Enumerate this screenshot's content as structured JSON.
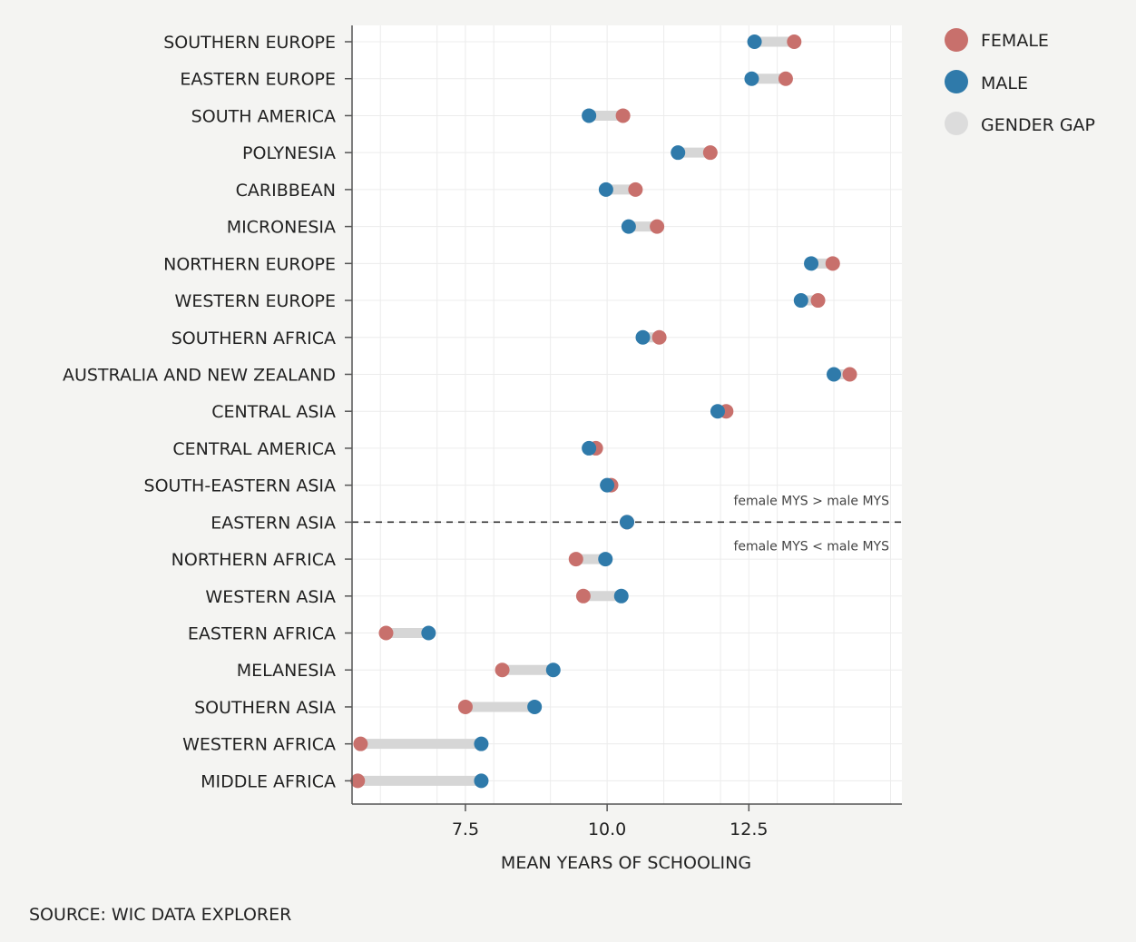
{
  "chart_data": {
    "type": "dumbbell",
    "xlabel": "MEAN YEARS OF SCHOOLING",
    "xlim": [
      5.5,
      15.2
    ],
    "x_ticks": [
      7.5,
      10.0,
      12.5
    ],
    "x_tick_labels": [
      "7.5",
      "10.0",
      "12.5"
    ],
    "grid": true,
    "legend_position": "top-right, outside plot",
    "legend": [
      {
        "label": "FEMALE",
        "color": "#c8706c"
      },
      {
        "label": "MALE",
        "color": "#2f7aaa"
      },
      {
        "label": "GENDER GAP",
        "color": "#d9d9d9"
      }
    ],
    "categories": [
      "SOUTHERN EUROPE",
      "EASTERN EUROPE",
      "SOUTH AMERICA",
      "POLYNESIA",
      "CARIBBEAN",
      "MICRONESIA",
      "NORTHERN EUROPE",
      "WESTERN EUROPE",
      "SOUTHERN AFRICA",
      "AUSTRALIA AND NEW ZEALAND",
      "CENTRAL ASIA",
      "CENTRAL AMERICA",
      "SOUTH-EASTERN ASIA",
      "EASTERN ASIA",
      "NORTHERN AFRICA",
      "WESTERN ASIA",
      "EASTERN AFRICA",
      "MELANESIA",
      "SOUTHERN ASIA",
      "WESTERN AFRICA",
      "MIDDLE AFRICA"
    ],
    "series": [
      {
        "name": "FEMALE",
        "color": "#c8706c",
        "values": [
          13.3,
          13.15,
          10.28,
          11.82,
          10.5,
          10.88,
          13.98,
          13.72,
          10.92,
          14.28,
          12.1,
          9.8,
          10.07,
          10.35,
          9.45,
          9.58,
          6.1,
          8.15,
          7.5,
          5.65,
          5.6
        ]
      },
      {
        "name": "MALE",
        "color": "#2f7aaa",
        "values": [
          12.6,
          12.55,
          9.68,
          11.25,
          9.98,
          10.38,
          13.6,
          13.42,
          10.63,
          14.0,
          11.95,
          9.68,
          10.0,
          10.35,
          9.97,
          10.25,
          6.85,
          9.05,
          8.72,
          7.78,
          7.78
        ]
      }
    ],
    "divider_after_category": "EASTERN ASIA",
    "annotations": [
      "female MYS > male MYS",
      "female MYS < male MYS"
    ]
  },
  "source": "SOURCE: WIC DATA EXPLORER"
}
